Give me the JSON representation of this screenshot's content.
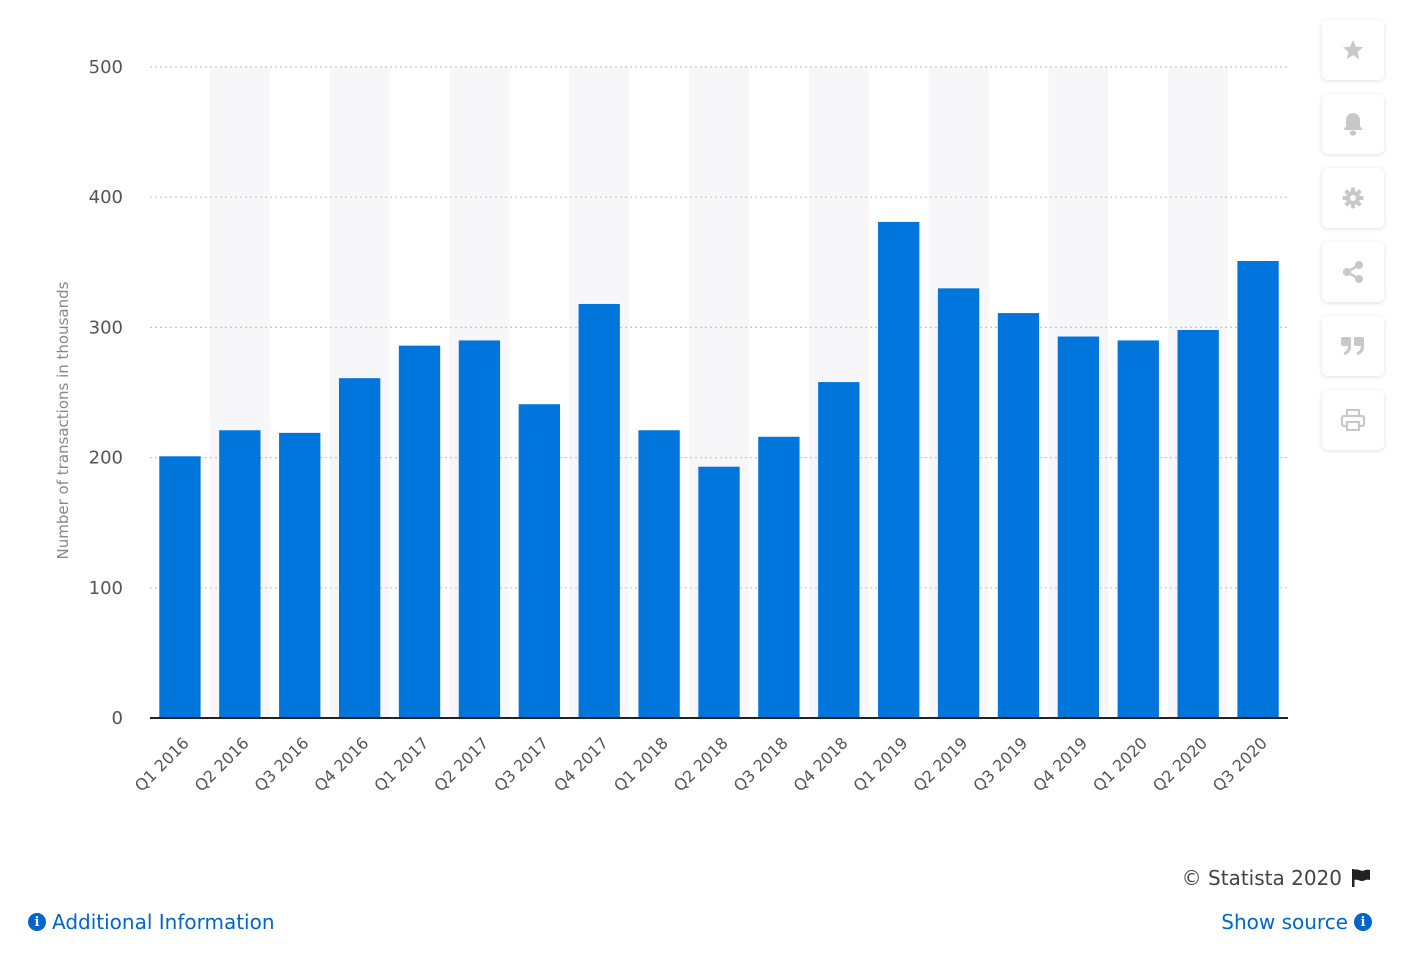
{
  "chart_data": {
    "type": "bar",
    "categories": [
      "Q1 2016",
      "Q2 2016",
      "Q3 2016",
      "Q4 2016",
      "Q1 2017",
      "Q2 2017",
      "Q3 2017",
      "Q4 2017",
      "Q1 2018",
      "Q2 2018",
      "Q3 2018",
      "Q4 2018",
      "Q1 2019",
      "Q2 2019",
      "Q3 2019",
      "Q4 2019",
      "Q1 2020",
      "Q2 2020",
      "Q3 2020"
    ],
    "values": [
      201,
      221,
      219,
      261,
      286,
      290,
      241,
      318,
      221,
      193,
      216,
      258,
      381,
      330,
      311,
      293,
      290,
      298,
      351
    ],
    "ylabel": "Number of transactions in thousands",
    "xlabel": "",
    "ylim": [
      0,
      500
    ],
    "yticks": [
      0,
      100,
      200,
      300,
      400,
      500
    ],
    "grid": true,
    "bar_color": "#0076dd",
    "band_color": "#f7f7f9"
  },
  "toolbar": {
    "icons": [
      "star-icon",
      "bell-icon",
      "gear-icon",
      "share-icon",
      "quote-icon",
      "print-icon"
    ]
  },
  "footer": {
    "credits": "© Statista 2020",
    "additional_info": "Additional Information",
    "show_source": "Show source"
  },
  "colors": {
    "link": "#0066cc",
    "icon": "#c8c8c8"
  }
}
